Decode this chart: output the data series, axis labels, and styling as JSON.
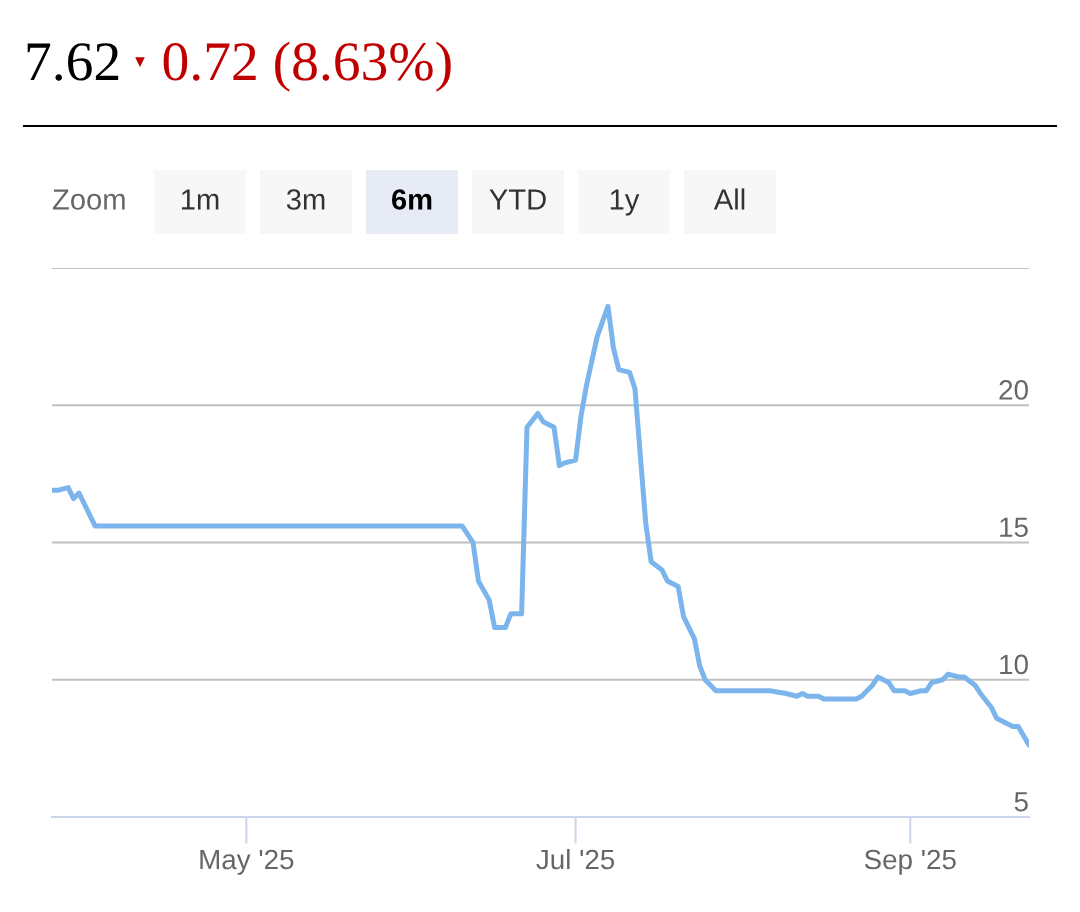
{
  "chart_data": {
    "type": "line",
    "title": "7.62",
    "subtitle": "▾ 0.72 (8.63%)",
    "annotations": [
      "Zoom",
      "1m",
      "3m",
      "6m",
      "YTD",
      "1y",
      "All"
    ],
    "x": [
      "2025-03-26",
      "2025-03-27",
      "2025-03-29",
      "2025-03-30",
      "2025-03-31",
      "2025-04-02",
      "2025-04-03",
      "2025-06-10",
      "2025-06-12",
      "2025-06-13",
      "2025-06-15",
      "2025-06-16",
      "2025-06-18",
      "2025-06-19",
      "2025-06-21",
      "2025-06-22",
      "2025-06-24",
      "2025-06-25",
      "2025-06-27",
      "2025-06-28",
      "2025-06-29",
      "2025-07-01",
      "2025-07-02",
      "2025-07-03",
      "2025-07-05",
      "2025-07-07",
      "2025-07-08",
      "2025-07-09",
      "2025-07-11",
      "2025-07-12",
      "2025-07-14",
      "2025-07-15",
      "2025-07-17",
      "2025-07-18",
      "2025-07-20",
      "2025-07-21",
      "2025-07-23",
      "2025-07-24",
      "2025-07-25",
      "2025-07-27",
      "2025-07-28",
      "2025-07-30",
      "2025-07-31",
      "2025-08-02",
      "2025-08-06",
      "2025-08-09",
      "2025-08-11",
      "2025-08-12",
      "2025-08-13",
      "2025-08-15",
      "2025-08-16",
      "2025-08-22",
      "2025-08-23",
      "2025-08-25",
      "2025-08-26",
      "2025-08-28",
      "2025-08-29",
      "2025-08-31",
      "2025-09-01",
      "2025-09-03",
      "2025-09-04",
      "2025-09-05",
      "2025-09-07",
      "2025-09-08",
      "2025-09-10",
      "2025-09-11",
      "2025-09-13",
      "2025-09-14",
      "2025-09-16",
      "2025-09-17",
      "2025-09-19",
      "2025-09-20",
      "2025-09-21",
      "2025-09-23"
    ],
    "series": [
      {
        "color": "#7cb5ec",
        "values": [
          16.9,
          16.9,
          17.0,
          16.6,
          16.8,
          16.0,
          15.6,
          15.6,
          15.0,
          13.6,
          12.9,
          11.9,
          11.9,
          12.4,
          12.4,
          19.2,
          19.7,
          19.4,
          19.2,
          17.8,
          17.9,
          18.0,
          19.6,
          20.7,
          22.5,
          23.6,
          22.1,
          21.3,
          21.2,
          20.6,
          15.7,
          14.3,
          14.0,
          13.6,
          13.4,
          12.3,
          11.5,
          10.5,
          10.0,
          9.6,
          9.6,
          9.6,
          9.6,
          9.6,
          9.6,
          9.5,
          9.4,
          9.5,
          9.4,
          9.4,
          9.3,
          9.3,
          9.4,
          9.8,
          10.1,
          9.9,
          9.6,
          9.6,
          9.5,
          9.6,
          9.6,
          9.9,
          10.0,
          10.2,
          10.1,
          10.1,
          9.8,
          9.5,
          9.0,
          8.6,
          8.4,
          8.3,
          8.3,
          7.62
        ]
      }
    ],
    "xlim": [
      "2025-03-26",
      "2025-09-23"
    ],
    "xticks": [
      {
        "value": "2025-05-01",
        "label": "May '25"
      },
      {
        "value": "2025-07-01",
        "label": "Jul '25"
      },
      {
        "value": "2025-09-01",
        "label": "Sep '25"
      }
    ],
    "ylim": [
      5,
      25
    ],
    "yticks": [
      5,
      10,
      15,
      20,
      {
        "value": 25,
        "label": null
      }
    ],
    "grid": "y",
    "line_style": "solid"
  }
}
